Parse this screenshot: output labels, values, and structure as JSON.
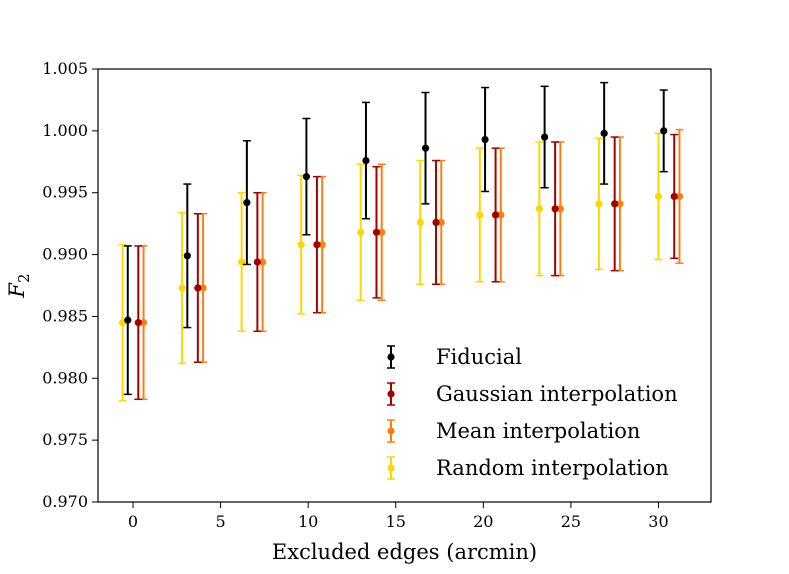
{
  "chart_data": {
    "type": "errorbar",
    "title": "",
    "xlabel": "Excluded edges (arcmin)",
    "ylabel_main": "F",
    "ylabel_sub": "2",
    "xlim": [
      -2,
      33
    ],
    "ylim": [
      0.97,
      1.005
    ],
    "xticks": [
      0,
      5,
      10,
      15,
      20,
      25,
      30
    ],
    "xtick_labels": [
      "0",
      "5",
      "10",
      "15",
      "20",
      "25",
      "30"
    ],
    "yticks": [
      0.97,
      0.975,
      0.98,
      0.985,
      0.99,
      0.995,
      1.0,
      1.005
    ],
    "ytick_labels": [
      "0.970",
      "0.975",
      "0.980",
      "0.985",
      "0.990",
      "0.995",
      "1.000",
      "1.005"
    ],
    "x": [
      0,
      3.4,
      6.8,
      10.2,
      13.6,
      17,
      20.4,
      23.8,
      27.2,
      30.6
    ],
    "legend_position": "lower-right",
    "series": [
      {
        "name": "Fiducial",
        "color": "#000000",
        "offset": -0.3,
        "values": [
          0.9847,
          0.9899,
          0.9942,
          0.9963,
          0.9976,
          0.9986,
          0.9993,
          0.9995,
          0.9998,
          1.0
        ],
        "errors": [
          0.006,
          0.0058,
          0.005,
          0.0047,
          0.0047,
          0.0045,
          0.0042,
          0.0041,
          0.0041,
          0.0033
        ]
      },
      {
        "name": "Gaussian interpolation",
        "color": "#a30000",
        "offset": 0.3,
        "values": [
          0.9845,
          0.9873,
          0.9894,
          0.9908,
          0.9918,
          0.9926,
          0.9932,
          0.9937,
          0.9941,
          0.9947
        ],
        "errors": [
          0.0062,
          0.006,
          0.0056,
          0.0055,
          0.0053,
          0.005,
          0.0054,
          0.0054,
          0.0054,
          0.005
        ]
      },
      {
        "name": "Mean interpolation",
        "color": "#ff7f0e",
        "offset": 0.6,
        "values": [
          0.9845,
          0.9873,
          0.9894,
          0.9908,
          0.9918,
          0.9926,
          0.9932,
          0.9937,
          0.9941,
          0.9947
        ],
        "errors": [
          0.0062,
          0.006,
          0.0056,
          0.0055,
          0.0055,
          0.005,
          0.0054,
          0.0054,
          0.0054,
          0.0054
        ]
      },
      {
        "name": "Random interpolation",
        "color": "#ffd700",
        "offset": -0.6,
        "values": [
          0.9845,
          0.9873,
          0.9894,
          0.9908,
          0.9918,
          0.9926,
          0.9932,
          0.9937,
          0.9941,
          0.9947
        ],
        "errors": [
          0.0063,
          0.0061,
          0.0056,
          0.0056,
          0.0055,
          0.005,
          0.0054,
          0.0054,
          0.0053,
          0.0051
        ]
      }
    ]
  }
}
